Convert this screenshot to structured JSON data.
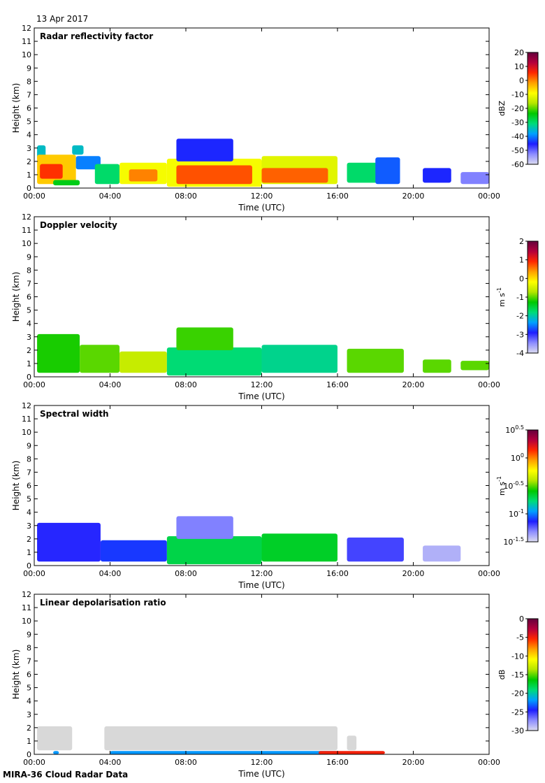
{
  "date": "13 Apr 2017",
  "footer": "MIRA-36 Cloud Radar Data",
  "chart_data": [
    {
      "type": "heatmap",
      "title": "Radar reflectivity factor",
      "xlabel": "Time (UTC)",
      "ylabel": "Height (km)",
      "xticks": [
        "00:00",
        "04:00",
        "08:00",
        "12:00",
        "16:00",
        "20:00",
        "00:00"
      ],
      "xlim_hours": [
        0,
        24
      ],
      "ylim": [
        0,
        12
      ],
      "yticks": [
        "0",
        "1",
        "2",
        "3",
        "4",
        "5",
        "6",
        "7",
        "8",
        "9",
        "10",
        "11",
        "12"
      ],
      "colorbar": {
        "label": "dBZ",
        "range": [
          -60,
          20
        ],
        "ticks": [
          "20",
          "10",
          "0",
          "-10",
          "-20",
          "-30",
          "-40",
          "-50",
          "-60"
        ],
        "colormap": [
          "#dcdcf0",
          "#8c8cff",
          "#1e1eff",
          "#00a0ff",
          "#00dc78",
          "#00c800",
          "#b4e600",
          "#ffff00",
          "#ffa000",
          "#ff2800",
          "#b4003c",
          "#64003c"
        ]
      },
      "cells": [
        {
          "t0": 0.15,
          "t1": 0.6,
          "h0": 2.1,
          "h1": 3.2,
          "v": -35
        },
        {
          "t0": 0.15,
          "t1": 2.2,
          "h0": 0.3,
          "h1": 2.5,
          "v": -5
        },
        {
          "t0": 0.3,
          "t1": 1.5,
          "h0": 0.7,
          "h1": 1.8,
          "v": 5
        },
        {
          "t0": 1.0,
          "t1": 2.4,
          "h0": 0.2,
          "h1": 0.6,
          "v": -25
        },
        {
          "t0": 2.0,
          "t1": 2.6,
          "h0": 2.5,
          "h1": 3.2,
          "v": -35
        },
        {
          "t0": 2.2,
          "t1": 3.5,
          "h0": 1.4,
          "h1": 2.4,
          "v": -40
        },
        {
          "t0": 3.2,
          "t1": 4.5,
          "h0": 0.3,
          "h1": 1.8,
          "v": -30
        },
        {
          "t0": 4.5,
          "t1": 7.0,
          "h0": 0.3,
          "h1": 1.9,
          "v": -10
        },
        {
          "t0": 5.0,
          "t1": 6.5,
          "h0": 0.5,
          "h1": 1.4,
          "v": 0
        },
        {
          "t0": 7.0,
          "t1": 12.0,
          "h0": 0.1,
          "h1": 2.2,
          "v": -10
        },
        {
          "t0": 7.5,
          "t1": 11.5,
          "h0": 0.3,
          "h1": 1.7,
          "v": 3
        },
        {
          "t0": 7.5,
          "t1": 10.5,
          "h0": 2.0,
          "h1": 3.7,
          "v": -45
        },
        {
          "t0": 12.0,
          "t1": 16.0,
          "h0": 0.3,
          "h1": 2.4,
          "v": -12
        },
        {
          "t0": 12.0,
          "t1": 15.5,
          "h0": 0.4,
          "h1": 1.5,
          "v": 2
        },
        {
          "t0": 16.5,
          "t1": 18.5,
          "h0": 0.4,
          "h1": 1.9,
          "v": -30
        },
        {
          "t0": 18.0,
          "t1": 19.3,
          "h0": 0.3,
          "h1": 2.3,
          "v": -42
        },
        {
          "t0": 20.5,
          "t1": 22.0,
          "h0": 0.4,
          "h1": 1.5,
          "v": -45
        },
        {
          "t0": 22.5,
          "t1": 24.0,
          "h0": 0.3,
          "h1": 1.2,
          "v": -52
        }
      ]
    },
    {
      "type": "heatmap",
      "title": "Doppler velocity",
      "xlabel": "Time (UTC)",
      "ylabel": "Height (km)",
      "xticks": [
        "00:00",
        "04:00",
        "08:00",
        "12:00",
        "16:00",
        "20:00",
        "00:00"
      ],
      "xlim_hours": [
        0,
        24
      ],
      "ylim": [
        0,
        12
      ],
      "yticks": [
        "0",
        "1",
        "2",
        "3",
        "4",
        "5",
        "6",
        "7",
        "8",
        "9",
        "10",
        "11",
        "12"
      ],
      "colorbar": {
        "label": "m s-1",
        "range": [
          -4,
          2
        ],
        "ticks": [
          "2",
          "1",
          "0",
          "-1",
          "-2",
          "-3",
          "-4"
        ],
        "colormap": [
          "#dcdcf0",
          "#8c8cff",
          "#1e1eff",
          "#00a0ff",
          "#00dc78",
          "#00c800",
          "#b4e600",
          "#ffff00",
          "#ffa000",
          "#ff2800",
          "#b4003c",
          "#64003c"
        ]
      },
      "cells": [
        {
          "t0": 0.15,
          "t1": 2.4,
          "h0": 0.3,
          "h1": 3.2,
          "v": -1.2
        },
        {
          "t0": 2.4,
          "t1": 4.5,
          "h0": 0.3,
          "h1": 2.4,
          "v": -1.0
        },
        {
          "t0": 4.5,
          "t1": 7.0,
          "h0": 0.3,
          "h1": 1.9,
          "v": -0.6
        },
        {
          "t0": 7.0,
          "t1": 12.0,
          "h0": 0.1,
          "h1": 2.2,
          "v": -1.8
        },
        {
          "t0": 7.5,
          "t1": 10.5,
          "h0": 2.0,
          "h1": 3.7,
          "v": -1.1
        },
        {
          "t0": 12.0,
          "t1": 16.0,
          "h0": 0.3,
          "h1": 2.4,
          "v": -1.9
        },
        {
          "t0": 16.5,
          "t1": 19.5,
          "h0": 0.3,
          "h1": 2.1,
          "v": -1.0
        },
        {
          "t0": 20.5,
          "t1": 22.0,
          "h0": 0.3,
          "h1": 1.3,
          "v": -1.0
        },
        {
          "t0": 22.5,
          "t1": 24.0,
          "h0": 0.5,
          "h1": 1.2,
          "v": -1.0
        }
      ]
    },
    {
      "type": "heatmap",
      "title": "Spectral width",
      "xlabel": "Time (UTC)",
      "ylabel": "Height (km)",
      "xticks": [
        "00:00",
        "04:00",
        "08:00",
        "12:00",
        "16:00",
        "20:00",
        "00:00"
      ],
      "xlim_hours": [
        0,
        24
      ],
      "ylim": [
        0,
        12
      ],
      "yticks": [
        "0",
        "1",
        "2",
        "3",
        "4",
        "5",
        "6",
        "7",
        "8",
        "9",
        "10",
        "11",
        "12"
      ],
      "colorbar": {
        "label": "m s-1",
        "range_log10": [
          -1.5,
          0.5
        ],
        "ticks": [
          "10^0.5",
          "10^0",
          "10^-0.5",
          "10^-1",
          "10^-1.5"
        ],
        "colormap": [
          "#dcdcf0",
          "#8c8cff",
          "#1e1eff",
          "#00a0ff",
          "#00dc78",
          "#00c800",
          "#b4e600",
          "#ffff00",
          "#ffa000",
          "#ff2800",
          "#b4003c",
          "#64003c"
        ]
      },
      "cells": [
        {
          "t0": 0.15,
          "t1": 3.5,
          "h0": 0.3,
          "h1": 3.2,
          "v": -1.15
        },
        {
          "t0": 3.5,
          "t1": 7.0,
          "h0": 0.3,
          "h1": 1.9,
          "v": -1.1
        },
        {
          "t0": 7.0,
          "t1": 12.0,
          "h0": 0.1,
          "h1": 2.2,
          "v": -0.7
        },
        {
          "t0": 7.5,
          "t1": 10.5,
          "h0": 2.0,
          "h1": 3.7,
          "v": -1.3
        },
        {
          "t0": 12.0,
          "t1": 16.0,
          "h0": 0.3,
          "h1": 2.4,
          "v": -0.65
        },
        {
          "t0": 16.5,
          "t1": 19.5,
          "h0": 0.3,
          "h1": 2.1,
          "v": -1.2
        },
        {
          "t0": 20.5,
          "t1": 22.5,
          "h0": 0.3,
          "h1": 1.5,
          "v": -1.4
        }
      ]
    },
    {
      "type": "heatmap",
      "title": "Linear depolarisation ratio",
      "xlabel": "Time (UTC)",
      "ylabel": "Height (km)",
      "xticks": [
        "00:00",
        "04:00",
        "08:00",
        "12:00",
        "16:00",
        "20:00",
        "00:00"
      ],
      "xlim_hours": [
        0,
        24
      ],
      "ylim": [
        0,
        12
      ],
      "yticks": [
        "0",
        "1",
        "2",
        "3",
        "4",
        "5",
        "6",
        "7",
        "8",
        "9",
        "10",
        "11",
        "12"
      ],
      "colorbar": {
        "label": "dB",
        "range": [
          -30,
          0
        ],
        "ticks": [
          "0",
          "-5",
          "-10",
          "-15",
          "-20",
          "-25",
          "-30"
        ],
        "colormap": [
          "#dcdcf0",
          "#8c8cff",
          "#1e1eff",
          "#00a0ff",
          "#00dc78",
          "#00c800",
          "#b4e600",
          "#ffff00",
          "#ffa000",
          "#ff2800",
          "#b4003c",
          "#64003c"
        ]
      },
      "missing_color": "#d8d8d8",
      "cells": [
        {
          "t0": 0.15,
          "t1": 2.0,
          "h0": 0.3,
          "h1": 2.1,
          "v": null
        },
        {
          "t0": 3.7,
          "t1": 16.0,
          "h0": 0.3,
          "h1": 2.1,
          "v": null
        },
        {
          "t0": 16.5,
          "t1": 17.0,
          "h0": 0.3,
          "h1": 1.4,
          "v": null
        },
        {
          "t0": 1.0,
          "t1": 1.3,
          "h0": 0.0,
          "h1": 0.25,
          "v": -22
        },
        {
          "t0": 4.0,
          "t1": 16.0,
          "h0": 0.0,
          "h1": 0.25,
          "v": -22
        },
        {
          "t0": 15.0,
          "t1": 18.5,
          "h0": 0.0,
          "h1": 0.25,
          "v": -5
        }
      ]
    }
  ]
}
